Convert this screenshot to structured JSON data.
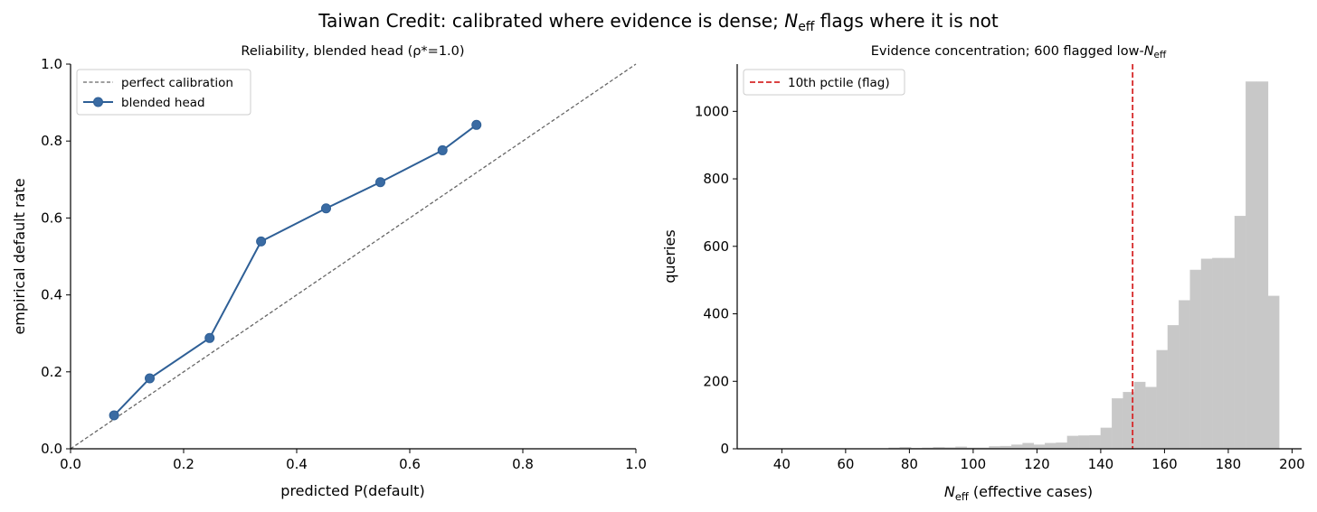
{
  "suptitle": {
    "pre": "Taiwan Credit: calibrated where evidence is dense; ",
    "n": "N",
    "sub": "eff",
    "post": " flags where it is not"
  },
  "chart_data": [
    {
      "type": "line",
      "title": "Reliability, blended head (ρ*=1.0)",
      "xlabel": "predicted P(default)",
      "ylabel": "empirical default rate",
      "xlim": [
        0,
        1
      ],
      "ylim": [
        0,
        1
      ],
      "xticks": [
        "0.0",
        "0.2",
        "0.4",
        "0.6",
        "0.8",
        "1.0"
      ],
      "yticks": [
        "0.0",
        "0.2",
        "0.4",
        "0.6",
        "0.8",
        "1.0"
      ],
      "legend_position": "upper-left",
      "grid": false,
      "series": [
        {
          "name": "perfect calibration",
          "style": "dashed",
          "color": "#666666",
          "x": [
            0,
            1
          ],
          "y": [
            0,
            1
          ]
        },
        {
          "name": "blended head",
          "style": "line-marker",
          "color": "#2e5f96",
          "x": [
            0.077,
            0.14,
            0.246,
            0.337,
            0.452,
            0.548,
            0.658,
            0.718
          ],
          "y": [
            0.087,
            0.183,
            0.288,
            0.539,
            0.625,
            0.693,
            0.776,
            0.842
          ]
        }
      ]
    },
    {
      "type": "bar",
      "subtype": "histogram",
      "title": {
        "pre": "Evidence concentration; 600 flagged low-",
        "n": "N",
        "sub": "eff"
      },
      "xlabel": {
        "n": "N",
        "sub": "eff",
        "post": " (effective cases)"
      },
      "ylabel": "queries",
      "xlim": [
        26,
        203
      ],
      "ylim": [
        0,
        1140
      ],
      "xticks": [
        40,
        60,
        80,
        100,
        120,
        140,
        160,
        180,
        200
      ],
      "yticks": [
        0,
        200,
        400,
        600,
        800,
        1000
      ],
      "grid": false,
      "bar_color": "#c8c8c8",
      "bin_width": 3.5,
      "bins": [
        [
          73.5,
          3
        ],
        [
          77,
          5
        ],
        [
          80.5,
          2
        ],
        [
          84,
          3
        ],
        [
          87.5,
          5
        ],
        [
          91,
          4
        ],
        [
          94.5,
          6
        ],
        [
          98,
          3
        ],
        [
          101.5,
          3
        ],
        [
          105,
          7
        ],
        [
          108.5,
          8
        ],
        [
          112,
          12
        ],
        [
          115.5,
          17
        ],
        [
          119,
          12
        ],
        [
          122.5,
          17
        ],
        [
          126,
          18
        ],
        [
          129.5,
          38
        ],
        [
          133,
          39
        ],
        [
          136.5,
          40
        ],
        [
          140,
          62
        ],
        [
          143.5,
          149
        ],
        [
          147,
          168
        ],
        [
          150.5,
          198
        ],
        [
          154,
          183
        ],
        [
          157.5,
          292
        ],
        [
          161,
          366
        ],
        [
          164.5,
          440
        ],
        [
          168,
          530
        ],
        [
          171.5,
          563
        ],
        [
          175,
          565
        ],
        [
          178.5,
          565
        ],
        [
          182,
          690
        ],
        [
          185.5,
          1088
        ],
        [
          189,
          1088
        ],
        [
          192.5,
          453
        ]
      ],
      "flag_threshold": 150,
      "flag_color": "#d62728",
      "legend": {
        "name": "10th pctile (flag)",
        "position": "upper-left"
      }
    }
  ]
}
